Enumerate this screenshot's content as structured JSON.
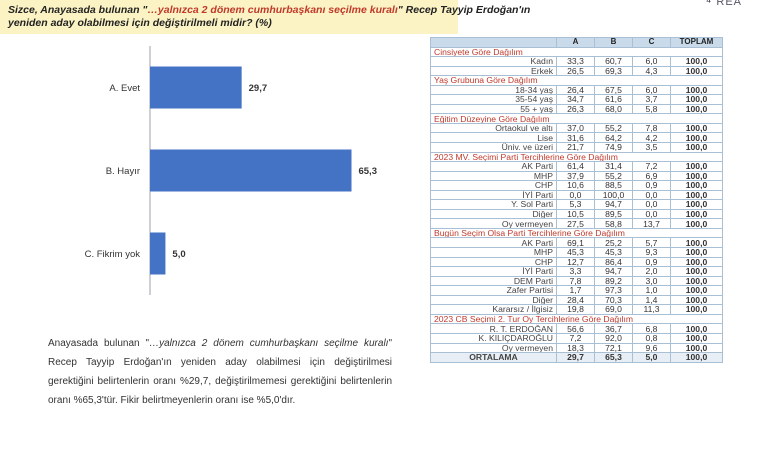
{
  "header": {
    "title_pre": "Sizce, Anayasada bulunan \"",
    "title_highlight": "…yalnızca 2 dönem cumhurbaşkanı seçilme kuralı",
    "title_post": "\" Recep Tayyip Erdoğan'ın",
    "title_line2": "yeniden aday olabilmesi için değiştirilmeli midir? (%)",
    "logo": "REA"
  },
  "chart_data": {
    "type": "bar",
    "orientation": "horizontal",
    "categories": [
      "A. Evet",
      "B. Hayır",
      "C. Fikrim yok"
    ],
    "values": [
      29.7,
      65.3,
      5.0
    ],
    "value_labels": [
      "29,7",
      "65,3",
      "5,0"
    ],
    "xlim": [
      0,
      70
    ],
    "grid": false,
    "colors": {
      "bar": "#4472c4",
      "axis": "#9aa3ad",
      "text": "#333333"
    }
  },
  "description": {
    "line1_pre": "Anayasada bulunan \"",
    "line1_italic": "…yalnızca 2 dönem cumhurbaşkanı seçilme",
    "line2_italic": "kuralı",
    "line2_post": "\" Recep Tayyip Erdoğan'ın yeniden aday olabilmesi için",
    "line3": "değiştirilmesi gerektiğini belirtenlerin oranı %29,7, değiştirilmemesi",
    "line4": "gerektiğini belirtenlerin oranı %65,3'tür. Fikir belirtmeyenlerin oranı ise",
    "line5": "%5,0'dır."
  },
  "table": {
    "headers": [
      "",
      "A",
      "B",
      "C",
      "TOPLAM"
    ],
    "rows": [
      {
        "section": "Cinsiyete Göre Dağılım"
      },
      {
        "label": "Kadın",
        "a": "33,3",
        "b": "60,7",
        "c": "6,0",
        "total": "100,0"
      },
      {
        "label": "Erkek",
        "a": "26,5",
        "b": "69,3",
        "c": "4,3",
        "total": "100,0"
      },
      {
        "section": "Yaş Grubuna Göre Dağılım"
      },
      {
        "label": "18-34 yaş",
        "a": "26,4",
        "b": "67,5",
        "c": "6,0",
        "total": "100,0"
      },
      {
        "label": "35-54 yaş",
        "a": "34,7",
        "b": "61,6",
        "c": "3,7",
        "total": "100,0"
      },
      {
        "label": "55 + yaş",
        "a": "26,3",
        "b": "68,0",
        "c": "5,8",
        "total": "100,0"
      },
      {
        "section": "Eğitim Düzeyine Göre Dağılım"
      },
      {
        "label": "Ortaokul ve altı",
        "a": "37,0",
        "b": "55,2",
        "c": "7,8",
        "total": "100,0"
      },
      {
        "label": "Lise",
        "a": "31,6",
        "b": "64,2",
        "c": "4,2",
        "total": "100,0"
      },
      {
        "label": "Üniv. ve üzeri",
        "a": "21,7",
        "b": "74,9",
        "c": "3,5",
        "total": "100,0"
      },
      {
        "section": "2023 MV. Seçimi Parti Tercihlerine Göre Dağılım"
      },
      {
        "label": "AK Parti",
        "a": "61,4",
        "b": "31,4",
        "c": "7,2",
        "total": "100,0"
      },
      {
        "label": "MHP",
        "a": "37,9",
        "b": "55,2",
        "c": "6,9",
        "total": "100,0"
      },
      {
        "label": "CHP",
        "a": "10,6",
        "b": "88,5",
        "c": "0,9",
        "total": "100,0"
      },
      {
        "label": "İYİ Parti",
        "a": "0,0",
        "b": "100,0",
        "c": "0,0",
        "total": "100,0"
      },
      {
        "label": "Y. Sol Parti",
        "a": "5,3",
        "b": "94,7",
        "c": "0,0",
        "total": "100,0"
      },
      {
        "label": "Diğer",
        "a": "10,5",
        "b": "89,5",
        "c": "0,0",
        "total": "100,0"
      },
      {
        "label": "Oy vermeyen",
        "a": "27,5",
        "b": "58,8",
        "c": "13,7",
        "total": "100,0"
      },
      {
        "section": "Bugün Seçim Olsa Parti Tercihlerine Göre Dağılım"
      },
      {
        "label": "AK Parti",
        "a": "69,1",
        "b": "25,2",
        "c": "5,7",
        "total": "100,0"
      },
      {
        "label": "MHP",
        "a": "45,3",
        "b": "45,3",
        "c": "9,3",
        "total": "100,0"
      },
      {
        "label": "CHP",
        "a": "12,7",
        "b": "86,4",
        "c": "0,9",
        "total": "100,0"
      },
      {
        "label": "İYİ Parti",
        "a": "3,3",
        "b": "94,7",
        "c": "2,0",
        "total": "100,0"
      },
      {
        "label": "DEM Parti",
        "a": "7,8",
        "b": "89,2",
        "c": "3,0",
        "total": "100,0"
      },
      {
        "label": "Zafer Partisi",
        "a": "1,7",
        "b": "97,3",
        "c": "1,0",
        "total": "100,0"
      },
      {
        "label": "Diğer",
        "a": "28,4",
        "b": "70,3",
        "c": "1,4",
        "total": "100,0"
      },
      {
        "label": "Kararsız / İlgisiz",
        "a": "19,8",
        "b": "69,0",
        "c": "11,3",
        "total": "100,0"
      },
      {
        "section": "2023 CB Seçimi 2. Tur Oy Tercihlerine Göre Dağılım"
      },
      {
        "label": "R. T. ERDOĞAN",
        "a": "56,6",
        "b": "36,7",
        "c": "6,8",
        "total": "100,0"
      },
      {
        "label": "K. KILIÇDAROĞLU",
        "a": "7,2",
        "b": "92,0",
        "c": "0,8",
        "total": "100,0"
      },
      {
        "label": "Oy vermeyen",
        "a": "18,3",
        "b": "72,1",
        "c": "9,6",
        "total": "100,0"
      },
      {
        "label": "ORTALAMA",
        "a": "29,7",
        "b": "65,3",
        "c": "5,0",
        "total": "100,0",
        "avg": true
      }
    ]
  }
}
